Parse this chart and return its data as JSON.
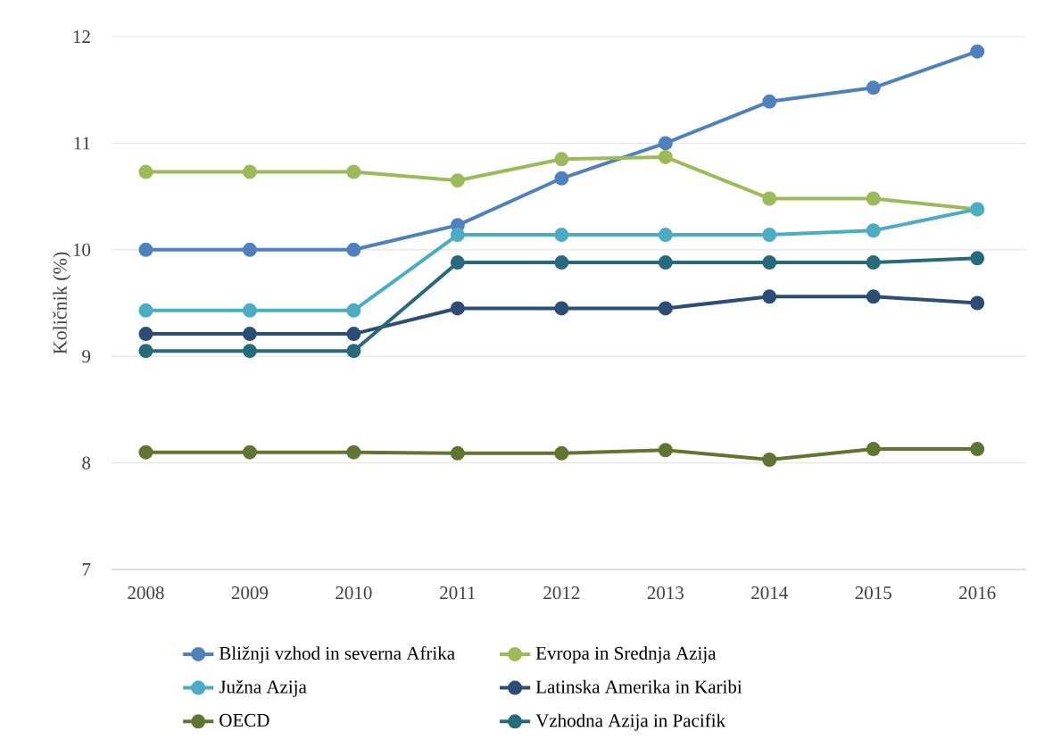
{
  "chart_data": {
    "type": "line",
    "ylabel": "Količnik (%)",
    "categories": [
      "2008",
      "2009",
      "2010",
      "2011",
      "2012",
      "2013",
      "2014",
      "2015",
      "2016"
    ],
    "ylim": [
      7,
      12
    ],
    "yticks": [
      7,
      8,
      9,
      10,
      11,
      12
    ],
    "grid": "y",
    "legend": "bottom",
    "marker": "circle",
    "line_style": "solid",
    "series": [
      {
        "name": "Bližnji vzhod in severna Afrika",
        "color": "#4f81bd",
        "values": [
          10.0,
          10.0,
          10.0,
          10.23,
          10.67,
          11.0,
          11.39,
          11.52,
          11.86
        ]
      },
      {
        "name": "Evropa in Srednja Azija",
        "color": "#9bbb59",
        "values": [
          10.73,
          10.73,
          10.73,
          10.65,
          10.85,
          10.87,
          10.48,
          10.48,
          10.38
        ]
      },
      {
        "name": "Južna Azija",
        "color": "#4bacc6",
        "values": [
          9.43,
          9.43,
          9.43,
          10.14,
          10.14,
          10.14,
          10.14,
          10.18,
          10.38
        ]
      },
      {
        "name": "Latinska Amerika in Karibi",
        "color": "#2c4d75",
        "values": [
          9.21,
          9.21,
          9.21,
          9.45,
          9.45,
          9.45,
          9.56,
          9.56,
          9.5
        ]
      },
      {
        "name": "OECD",
        "color": "#5f7530",
        "values": [
          8.1,
          8.1,
          8.1,
          8.09,
          8.09,
          8.12,
          8.03,
          8.13,
          8.13
        ]
      },
      {
        "name": "Vzhodna Azija in Pacifik",
        "color": "#276a7c",
        "values": [
          9.05,
          9.05,
          9.05,
          9.88,
          9.88,
          9.88,
          9.88,
          9.88,
          9.92
        ]
      }
    ]
  }
}
